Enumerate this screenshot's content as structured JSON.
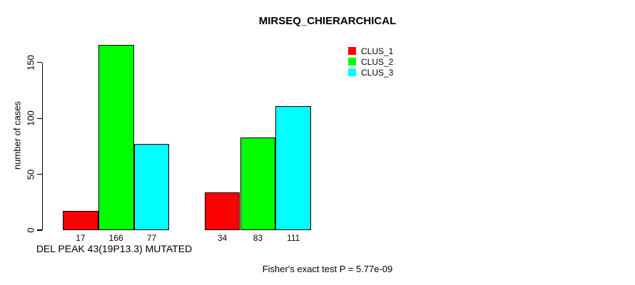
{
  "chart_data": {
    "type": "bar",
    "title": "MIRSEQ_CHIERARCHICAL",
    "ylabel": "number of cases",
    "xlabel": "",
    "yticks": [
      0,
      50,
      100,
      150
    ],
    "ylim": [
      0,
      166
    ],
    "grid": false,
    "legend_position": "top-right-inside",
    "series": [
      {
        "name": "CLUS_1",
        "color": "#FF0000"
      },
      {
        "name": "CLUS_2",
        "color": "#00FF00"
      },
      {
        "name": "CLUS_3",
        "color": "#00FFFF"
      }
    ],
    "groups": [
      {
        "label": "DEL PEAK 43(19P13.3) MUTATED",
        "values": [
          17,
          166,
          77
        ]
      },
      {
        "label": "",
        "values": [
          34,
          83,
          111
        ]
      }
    ],
    "annotation": "Fisher's exact test P = 5.77e-09"
  }
}
